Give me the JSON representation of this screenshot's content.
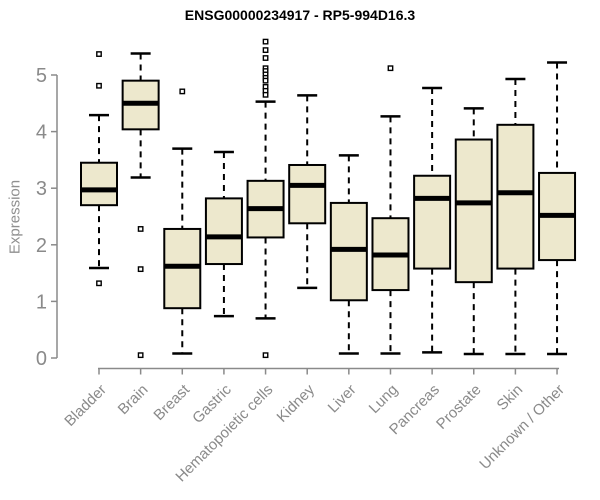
{
  "window": {
    "title": "ENSG00000234917 - RP5-994D16.3"
  },
  "chart_data": {
    "type": "boxplot",
    "title": "ENSG00000234917 - RP5-994D16.3",
    "ylabel": "Expression",
    "xlabel": "",
    "ylim": [
      0,
      5
    ],
    "yticks": [
      0,
      1,
      2,
      3,
      4,
      5
    ],
    "grid": false,
    "legend": false,
    "box_fill": "#ede8cd",
    "box_stroke": "#000000",
    "median_color": "#000000",
    "whisker_style": "dashed",
    "outlier_marker": "open-square",
    "axis_color": "#8a8a8a",
    "categories": [
      "Bladder",
      "Brain",
      "Breast",
      "Gastric",
      "Hematopoietic cells",
      "Kidney",
      "Liver",
      "Lung",
      "Pancreas",
      "Prostate",
      "Skin",
      "Unknown / Other"
    ],
    "series": [
      {
        "name": "Bladder",
        "whisker_low": 1.59,
        "q1": 2.7,
        "median": 2.97,
        "q3": 3.45,
        "whisker_high": 4.29,
        "outliers": [
          5.37,
          4.81,
          1.32
        ]
      },
      {
        "name": "Brain",
        "whisker_low": 3.19,
        "q1": 4.04,
        "median": 4.5,
        "q3": 4.9,
        "whisker_high": 5.38,
        "outliers": [
          2.28,
          1.57,
          0.05
        ]
      },
      {
        "name": "Breast",
        "whisker_low": 0.08,
        "q1": 0.88,
        "median": 1.62,
        "q3": 2.28,
        "whisker_high": 3.7,
        "outliers": [
          4.71
        ]
      },
      {
        "name": "Gastric",
        "whisker_low": 0.74,
        "q1": 1.66,
        "median": 2.14,
        "q3": 2.82,
        "whisker_high": 3.64,
        "outliers": []
      },
      {
        "name": "Hematopoietic cells",
        "whisker_low": 0.7,
        "q1": 2.13,
        "median": 2.64,
        "q3": 3.13,
        "whisker_high": 4.53,
        "outliers": [
          5.59,
          5.44,
          5.3,
          5.12,
          5.07,
          5.01,
          4.95,
          4.9,
          4.79,
          4.72,
          4.65,
          0.05
        ]
      },
      {
        "name": "Kidney",
        "whisker_low": 1.24,
        "q1": 2.38,
        "median": 3.05,
        "q3": 3.41,
        "whisker_high": 4.64,
        "outliers": []
      },
      {
        "name": "Liver",
        "whisker_low": 0.08,
        "q1": 1.02,
        "median": 1.92,
        "q3": 2.74,
        "whisker_high": 3.58,
        "outliers": []
      },
      {
        "name": "Lung",
        "whisker_low": 0.08,
        "q1": 1.2,
        "median": 1.82,
        "q3": 2.47,
        "whisker_high": 4.27,
        "outliers": [
          5.12
        ]
      },
      {
        "name": "Pancreas",
        "whisker_low": 0.1,
        "q1": 1.58,
        "median": 2.82,
        "q3": 3.22,
        "whisker_high": 4.77,
        "outliers": []
      },
      {
        "name": "Prostate",
        "whisker_low": 0.07,
        "q1": 1.34,
        "median": 2.74,
        "q3": 3.86,
        "whisker_high": 4.41,
        "outliers": []
      },
      {
        "name": "Skin",
        "whisker_low": 0.07,
        "q1": 1.58,
        "median": 2.92,
        "q3": 4.12,
        "whisker_high": 4.93,
        "outliers": []
      },
      {
        "name": "Unknown / Other",
        "whisker_low": 0.07,
        "q1": 1.73,
        "median": 2.52,
        "q3": 3.27,
        "whisker_high": 5.22,
        "outliers": []
      }
    ]
  }
}
